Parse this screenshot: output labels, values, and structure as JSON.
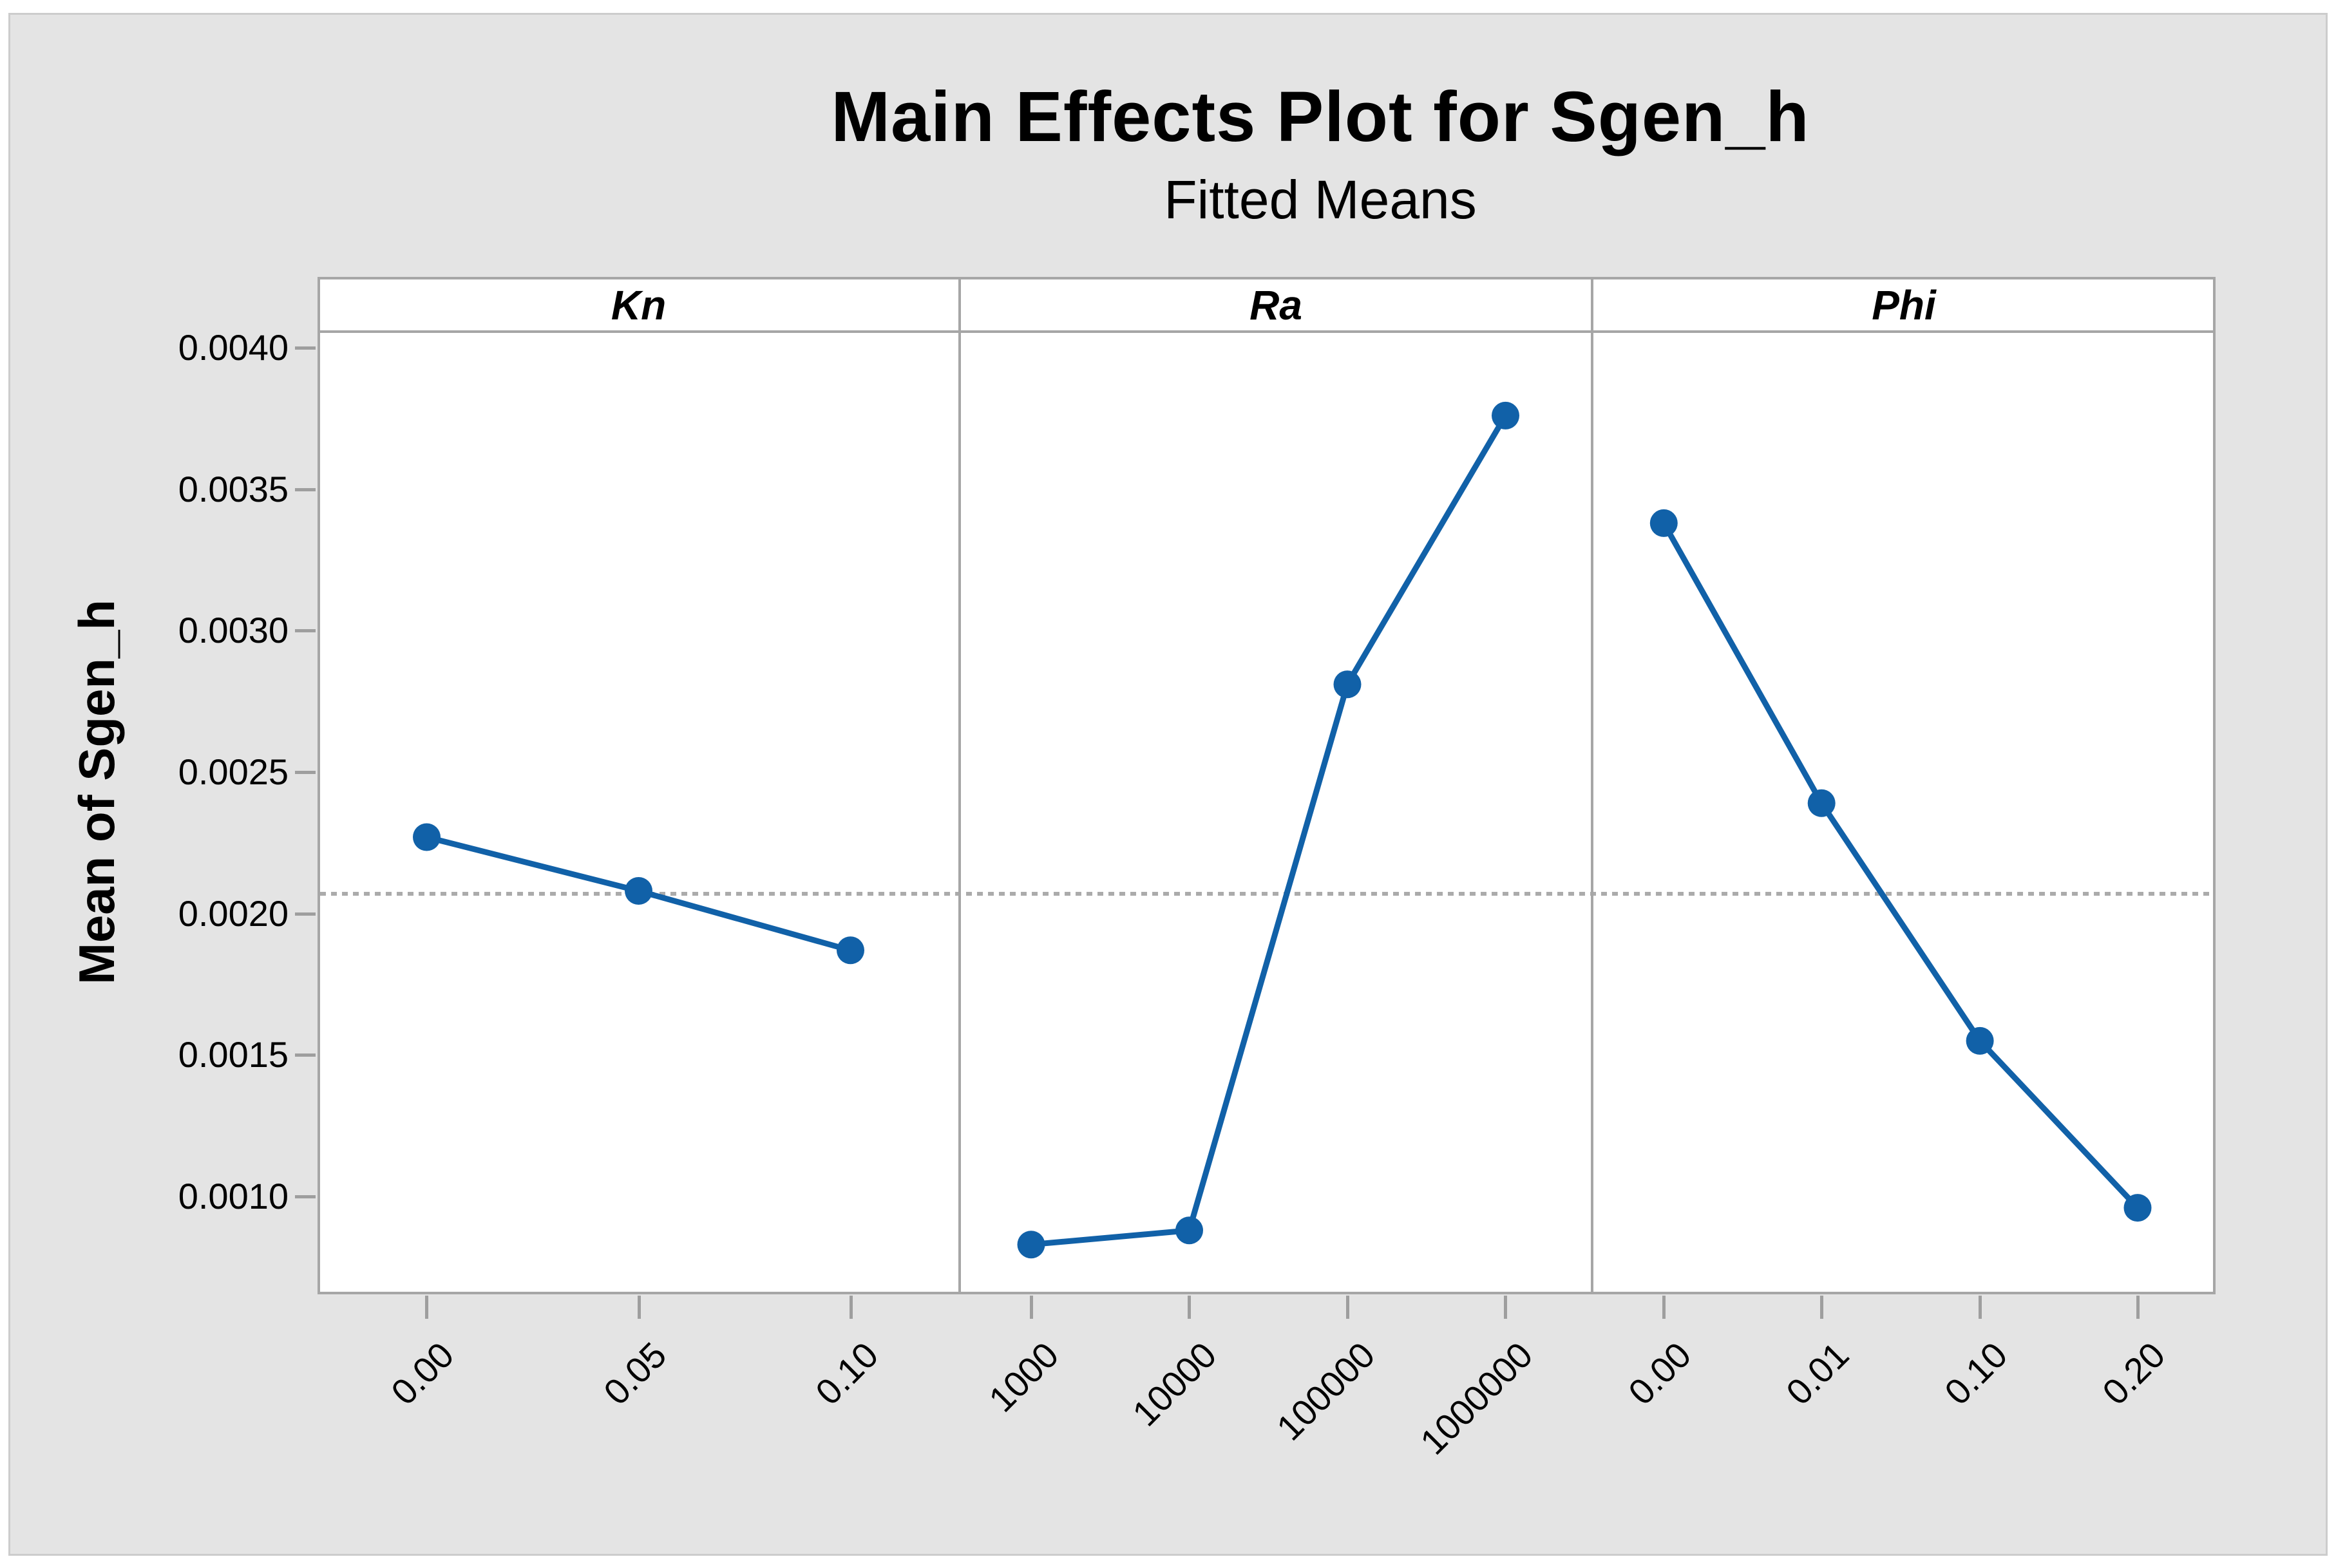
{
  "figure": {
    "title": "Main Effects Plot for Sgen_h",
    "subtitle": "Fitted Means",
    "background": "#E4E4E4",
    "frame_color": "#CCCCCC"
  },
  "y_axis": {
    "label": "Mean of Sgen_h",
    "tick_labels": [
      "0.0040",
      "0.0035",
      "0.0030",
      "0.0025",
      "0.0020",
      "0.0015",
      "0.0010"
    ],
    "tick_values": [
      0.004,
      0.0035,
      0.003,
      0.0025,
      0.002,
      0.0015,
      0.001
    ]
  },
  "reference_line": {
    "value": 0.00207,
    "style": "dotted",
    "color": "#ABABAB"
  },
  "chart_data": {
    "type": "line",
    "title": "Main Effects Plot for Sgen_h",
    "subtitle": "Fitted Means",
    "ylabel": "Mean of Sgen_h",
    "ylim": [
      0.00065,
      0.00401
    ],
    "grid": false,
    "legend": "none",
    "grand_mean": 0.00207,
    "panels": [
      {
        "factor": "Kn",
        "categories": [
          "0.00",
          "0.05",
          "0.10"
        ],
        "values": [
          0.00227,
          0.00208,
          0.00187
        ]
      },
      {
        "factor": "Ra",
        "categories": [
          "1000",
          "10000",
          "100000",
          "1000000"
        ],
        "values": [
          0.00083,
          0.00088,
          0.00281,
          0.00376
        ]
      },
      {
        "factor": "Phi",
        "categories": [
          "0.00",
          "0.01",
          "0.10",
          "0.20"
        ],
        "values": [
          0.00338,
          0.00239,
          0.00155,
          0.00096
        ]
      }
    ],
    "series_color": "#1161A8",
    "axis_color": "#A6A6A6",
    "tick_color": "#9E9E9E"
  }
}
